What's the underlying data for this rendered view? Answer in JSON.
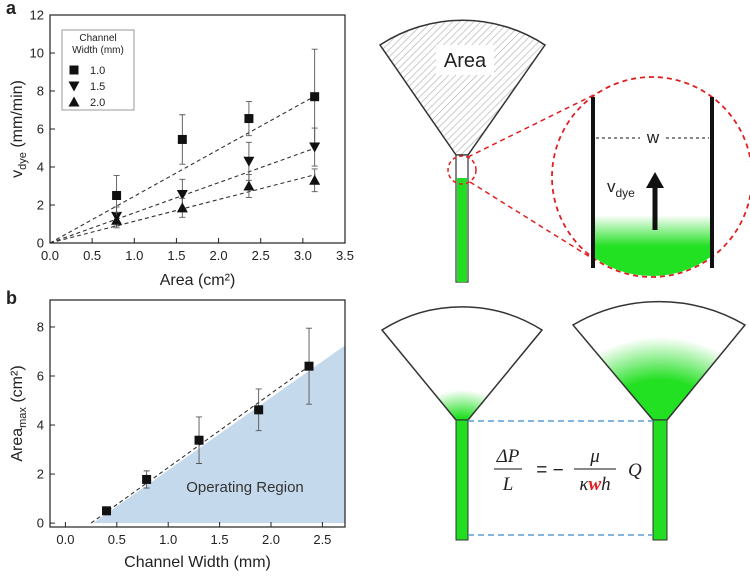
{
  "panels": {
    "a": "a",
    "b": "b"
  },
  "chart_data": [
    {
      "type": "scatter",
      "x_label": "Area (cm²)",
      "y_label": "v",
      "y_label_sub": "dye",
      "y_label_rest": " (mm/min)",
      "xlim": [
        0,
        3.5
      ],
      "ylim": [
        0,
        12
      ],
      "xticks": [
        {
          "value": 0,
          "label": "0.0"
        },
        {
          "value": 0.5,
          "label": "0.5"
        },
        {
          "value": 1,
          "label": "1.0"
        },
        {
          "value": 1.5,
          "label": "1.5"
        },
        {
          "value": 2,
          "label": "2.0"
        },
        {
          "value": 2.5,
          "label": "2.5"
        },
        {
          "value": 3,
          "label": "3.0"
        },
        {
          "value": 3.5,
          "label": "3.5"
        }
      ],
      "yticks": [
        0,
        2,
        4,
        6,
        8,
        10,
        12
      ],
      "legend_title": [
        "Channel",
        "Width (mm)"
      ],
      "legend": "upper left",
      "x": [
        0.79,
        1.57,
        2.36,
        3.14
      ],
      "series": [
        {
          "name": "1.0",
          "marker": "square",
          "color": "#111111",
          "values": [
            2.5,
            5.45,
            6.55,
            7.7
          ],
          "errors": [
            1.05,
            1.3,
            0.9,
            2.5
          ]
        },
        {
          "name": "1.5",
          "marker": "triangle-down",
          "color": "#111111",
          "values": [
            1.4,
            2.55,
            4.3,
            5.05
          ],
          "errors": [
            0.5,
            0.8,
            1.0,
            1.0
          ]
        },
        {
          "name": "2.0",
          "marker": "triangle-up",
          "color": "#111111",
          "values": [
            1.2,
            1.85,
            3.0,
            3.3
          ],
          "errors": [
            0.4,
            0.5,
            0.6,
            0.6
          ]
        }
      ],
      "fits": [
        {
          "x": [
            0,
            3.15
          ],
          "y": [
            0,
            7.75
          ]
        },
        {
          "x": [
            0,
            3.15
          ],
          "y": [
            0,
            5.0
          ]
        },
        {
          "x": [
            0,
            3.15
          ],
          "y": [
            0,
            3.6
          ]
        }
      ]
    },
    {
      "type": "scatter",
      "x_label": "Channel Width (mm)",
      "y_label": "Area",
      "y_label_sub": "max",
      "y_label_rest": " (cm²)",
      "xlim": [
        -0.15,
        2.72
      ],
      "ylim": [
        -0.16,
        9.1
      ],
      "xticks": [
        {
          "value": 0,
          "label": "0.0"
        },
        {
          "value": 0.5,
          "label": "0.5"
        },
        {
          "value": 1,
          "label": "1.0"
        },
        {
          "value": 1.5,
          "label": "1.5"
        },
        {
          "value": 2,
          "label": "2.0"
        },
        {
          "value": 2.5,
          "label": "2.5"
        }
      ],
      "yticks": [
        0,
        2,
        4,
        6,
        8
      ],
      "x": [
        0.4,
        0.79,
        1.3,
        1.88,
        2.37
      ],
      "series": [
        {
          "marker": "square",
          "color": "#111111",
          "values": [
            0.5,
            1.78,
            3.38,
            4.62,
            6.4
          ],
          "errors": [
            0.1,
            0.35,
            0.95,
            0.85,
            1.55
          ]
        }
      ],
      "fits": [
        {
          "x": [
            0.25,
            2.37
          ],
          "y": [
            0,
            6.4
          ]
        }
      ],
      "region": {
        "x": [
          0.27,
          2.72,
          2.72
        ],
        "y": [
          0,
          0,
          7.25
        ],
        "color": "#c5d9ec",
        "label": "Operating Region"
      }
    }
  ],
  "diagram": {
    "area": "Area",
    "width": "w",
    "velocity": "v",
    "velocity_sub": "dye",
    "equation": {
      "lhs_num": "ΔP",
      "lhs_den": "L",
      "sign": "= −",
      "rhs_num": "μ",
      "rhs_den_1": "κ",
      "rhs_den_w": "w",
      "rhs_den_2": "h",
      "factor": "Q"
    }
  }
}
